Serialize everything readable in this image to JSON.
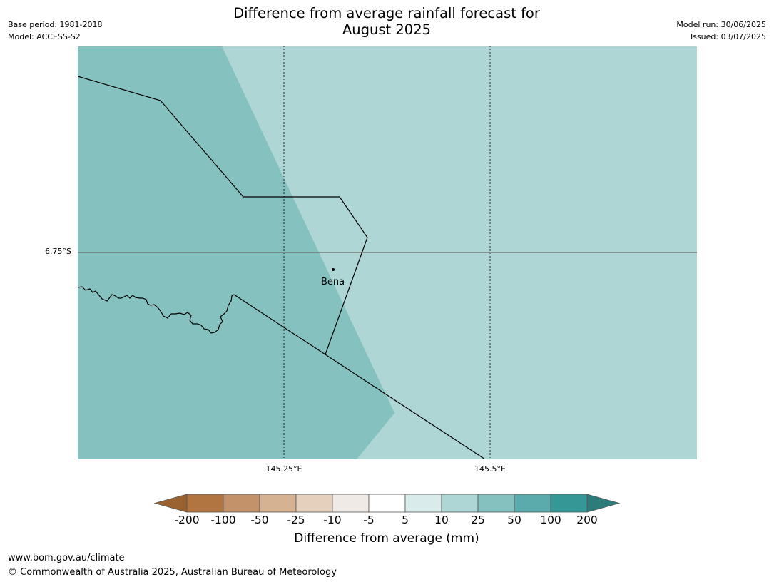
{
  "header": {
    "title_line1": "Difference from average rainfall forecast for",
    "title_line2": "August 2025",
    "base_period": "Base period: 1981-2018",
    "model": "Model: ACCESS-S2",
    "model_run": "Model run: 30/06/2025",
    "issued": "Issued: 03/07/2025"
  },
  "map": {
    "lat_label": "6.75°S",
    "lon_labels": [
      "145.25°E",
      "145.5°E"
    ],
    "place": "Bena",
    "colors": {
      "cat_50_100": "#85c1bf",
      "cat_10_25": "#add6d5"
    }
  },
  "colorbar": {
    "title": "Difference from average (mm)",
    "ticks": [
      "-200",
      "-100",
      "-50",
      "-25",
      "-10",
      "-5",
      "5",
      "10",
      "25",
      "50",
      "100",
      "200"
    ],
    "colors": [
      "#9a6230",
      "#b07540",
      "#c3916a",
      "#d4b292",
      "#e5d0bd",
      "#efeae6",
      "#ffffff",
      "#d9ebea",
      "#add6d5",
      "#85c1bf",
      "#5aabab",
      "#339896",
      "#2b7c7a"
    ]
  },
  "footer": {
    "url": "www.bom.gov.au/climate",
    "copyright": "© Commonwealth of Australia 2025, Australian Bureau of Meteorology"
  }
}
